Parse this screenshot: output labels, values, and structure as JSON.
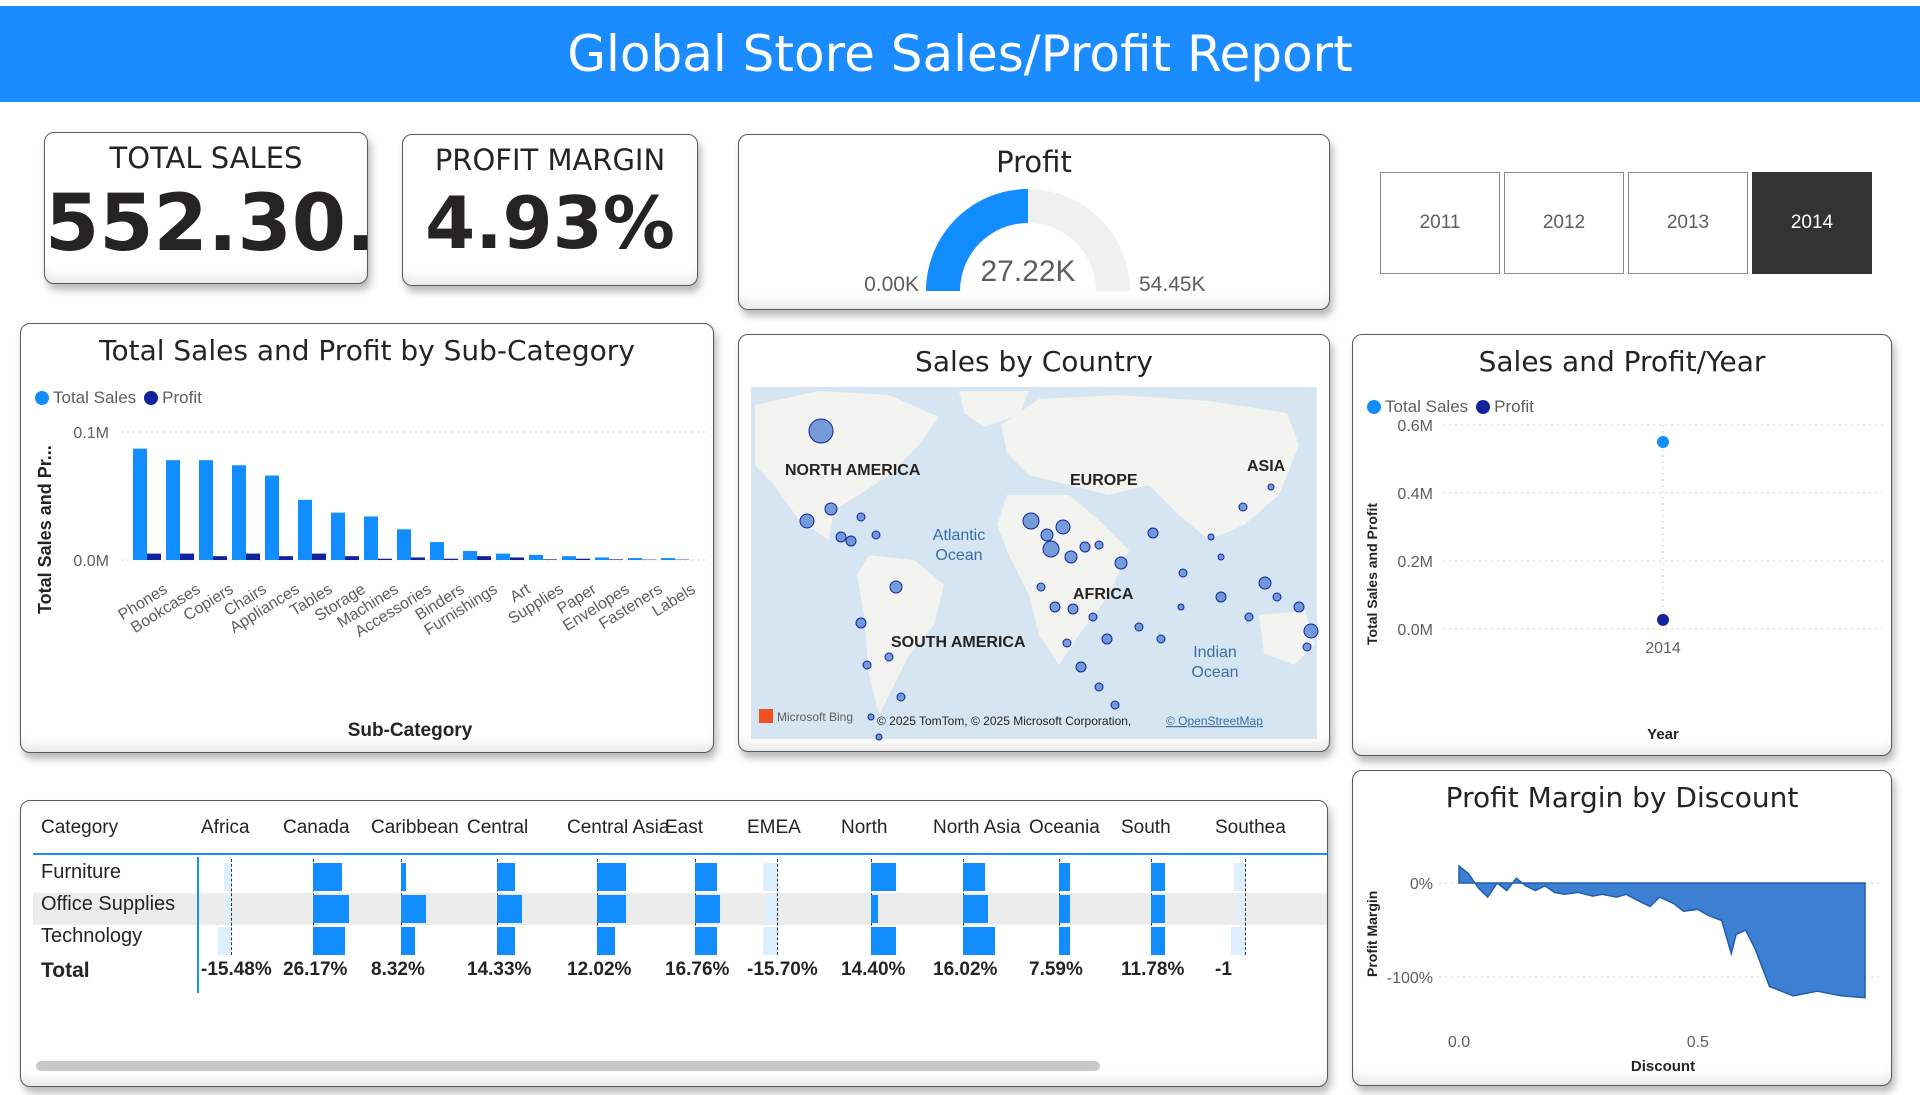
{
  "header": {
    "title": "Global Store  Sales/Profit Report"
  },
  "kpi_total_sales": {
    "label": "TOTAL SALES",
    "value": "552.30..."
  },
  "kpi_profit_margin": {
    "label": "PROFIT MARGIN",
    "value": "4.93%"
  },
  "gauge": {
    "title": "Profit",
    "min_label": "0.00K",
    "max_label": "54.45K",
    "value_label": "27.22K",
    "value": 27.22,
    "min": 0,
    "max": 54.45
  },
  "year_slicer": {
    "options": [
      "2011",
      "2012",
      "2013",
      "2014"
    ],
    "selected": "2014"
  },
  "colors": {
    "sales": "#118dff",
    "profit": "#12239e",
    "banner": "#1a8cff",
    "selected_year": "#333333"
  },
  "subcategory_chart": {
    "title": "Total Sales and Profit by Sub-Category",
    "legend": [
      "Total Sales",
      "Profit"
    ],
    "xlabel": "Sub-Category",
    "ylabel": "Total Sales and Pr...",
    "yticks": [
      "0.1M",
      "0.0M"
    ]
  },
  "map": {
    "title": "Sales by Country",
    "labels": {
      "north_america": "NORTH AMERICA",
      "europe": "EUROPE",
      "asia": "ASIA",
      "africa": "AFRICA",
      "south_america": "SOUTH AMERICA",
      "atlantic": "Atlantic",
      "atlantic2": "Ocean",
      "indian": "Indian",
      "indian2": "Ocean"
    },
    "bing": "Microsoft Bing",
    "attribution": "© 2025 TomTom, © 2025 Microsoft Corporation,",
    "osm": "© OpenStreetMap"
  },
  "year_chart": {
    "title": "Sales and Profit/Year",
    "legend": [
      "Total Sales",
      "Profit"
    ],
    "ylabel": "Total Sales and Profit",
    "xlabel": "Year",
    "yticks": [
      "0.6M",
      "0.4M",
      "0.2M",
      "0.0M"
    ]
  },
  "discount_chart": {
    "title": "Profit Margin by Discount",
    "ylabel": "Profit Margin",
    "xlabel": "Discount",
    "yticks": [
      "0%",
      "-100%"
    ],
    "xticks": [
      "0.0",
      "0.5"
    ]
  },
  "matrix": {
    "row_header": "Category",
    "columns": [
      "Africa",
      "Canada",
      "Caribbean",
      "Central",
      "Central Asia",
      "East",
      "EMEA",
      "North",
      "North Asia",
      "Oceania",
      "South",
      "Southea"
    ],
    "rows": [
      "Furniture",
      "Office Supplies",
      "Technology"
    ],
    "total_label": "Total",
    "totals": [
      "-15.48%",
      "26.17%",
      "8.32%",
      "14.33%",
      "12.02%",
      "16.76%",
      "-15.70%",
      "14.40%",
      "16.02%",
      "7.59%",
      "11.78%",
      "-1"
    ]
  },
  "chart_data": [
    {
      "type": "bar",
      "title": "Total Sales and Profit by Sub-Category",
      "xlabel": "Sub-Category",
      "ylabel": "Total Sales and Pr...",
      "categories": [
        "Phones",
        "Bookcases",
        "Copiers",
        "Chairs",
        "Appliances",
        "Tables",
        "Storage",
        "Machines",
        "Accessories",
        "Binders",
        "Furnishings",
        "Art",
        "Supplies",
        "Paper",
        "Envelopes",
        "Fasteners",
        "Labels"
      ],
      "series": [
        {
          "name": "Total Sales",
          "values": [
            0.087,
            0.078,
            0.078,
            0.074,
            0.066,
            0.047,
            0.037,
            0.034,
            0.024,
            0.014,
            0.007,
            0.005,
            0.004,
            0.003,
            0.002,
            0.0015,
            0.0015
          ]
        },
        {
          "name": "Profit",
          "values": [
            0.005,
            0.005,
            0.003,
            0.005,
            0.003,
            0.005,
            0.003,
            0.001,
            0.002,
            0.001,
            0.003,
            0.002,
            0.0005,
            0.001,
            0.0005,
            0.0003,
            0.0003
          ]
        }
      ],
      "ylim": [
        0,
        0.1
      ],
      "legend": "top-left",
      "grid": true
    },
    {
      "type": "scatter",
      "title": "Sales and Profit/Year",
      "xlabel": "Year",
      "ylabel": "Total Sales and Profit",
      "x": [
        "2014"
      ],
      "series": [
        {
          "name": "Total Sales",
          "values": [
            0.55
          ]
        },
        {
          "name": "Profit",
          "values": [
            0.027
          ]
        }
      ],
      "ylim": [
        0,
        0.6
      ],
      "legend": "top-left",
      "grid": true
    },
    {
      "type": "area",
      "title": "Profit Margin by Discount",
      "xlabel": "Discount",
      "ylabel": "Profit Margin",
      "x": [
        0.0,
        0.02,
        0.04,
        0.06,
        0.08,
        0.1,
        0.12,
        0.14,
        0.16,
        0.18,
        0.2,
        0.22,
        0.25,
        0.28,
        0.3,
        0.33,
        0.35,
        0.38,
        0.4,
        0.42,
        0.45,
        0.47,
        0.5,
        0.52,
        0.55,
        0.57,
        0.58,
        0.6,
        0.62,
        0.65,
        0.7,
        0.75,
        0.8,
        0.85
      ],
      "values": [
        18,
        10,
        -5,
        -15,
        0,
        -8,
        5,
        -3,
        -8,
        -3,
        -10,
        -12,
        -10,
        -14,
        -12,
        -15,
        -12,
        -20,
        -25,
        -15,
        -22,
        -30,
        -28,
        -34,
        -40,
        -75,
        -55,
        -50,
        -70,
        -110,
        -120,
        -115,
        -120,
        -122
      ],
      "ylim": [
        -140,
        30
      ],
      "grid": true
    }
  ]
}
